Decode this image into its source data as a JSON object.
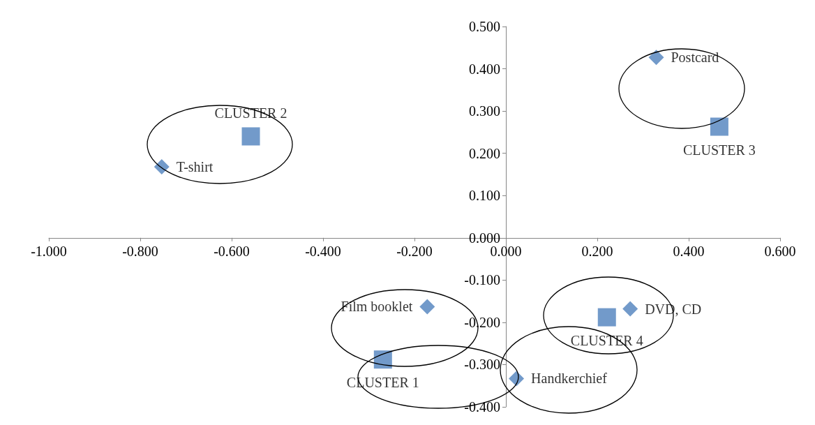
{
  "chart_data": {
    "type": "scatter",
    "xlim": [
      -1.0,
      0.6
    ],
    "ylim": [
      -0.4,
      0.5
    ],
    "xticks": [
      {
        "value": -1.0,
        "label": "-1.000"
      },
      {
        "value": -0.8,
        "label": "-0.800"
      },
      {
        "value": -0.6,
        "label": "-0.600"
      },
      {
        "value": -0.4,
        "label": "-0.400"
      },
      {
        "value": -0.2,
        "label": "-0.200"
      },
      {
        "value": 0,
        "label": "0.000"
      },
      {
        "value": 0.2,
        "label": "0.200"
      },
      {
        "value": 0.4,
        "label": "0.400"
      },
      {
        "value": 0.6,
        "label": "0.600"
      }
    ],
    "yticks": [
      {
        "value": -0.4,
        "label": "-0.400"
      },
      {
        "value": -0.3,
        "label": "-0.300"
      },
      {
        "value": -0.2,
        "label": "-0.200"
      },
      {
        "value": -0.1,
        "label": "-0.100"
      },
      {
        "value": 0,
        "label": "0.000"
      },
      {
        "value": 0.1,
        "label": "0.100"
      },
      {
        "value": 0.2,
        "label": "0.200"
      },
      {
        "value": 0.3,
        "label": "0.300"
      },
      {
        "value": 0.4,
        "label": "0.400"
      },
      {
        "value": 0.5,
        "label": "0.500"
      }
    ],
    "series": [
      {
        "color": "#4f81bd",
        "marker": "diamond",
        "x": [
          -0.753,
          0.329,
          -0.172,
          0.272,
          0.023
        ],
        "values": [
          0.168,
          0.427,
          -0.163,
          -0.168,
          -0.333
        ],
        "value_labels": [
          "T-shirt",
          "Postcard",
          "Film booklet",
          "DVD, CD",
          "Handkerchief"
        ]
      },
      {
        "color": "#4f81bd",
        "marker": "square",
        "x": [
          -0.558,
          0.467,
          -0.269,
          0.221
        ],
        "values": [
          0.24,
          0.263,
          -0.288,
          -0.188
        ],
        "value_labels": [
          "CLUSTER 2",
          "CLUSTER 3",
          "CLUSTER 1",
          "CLUSTER 4"
        ]
      }
    ]
  }
}
